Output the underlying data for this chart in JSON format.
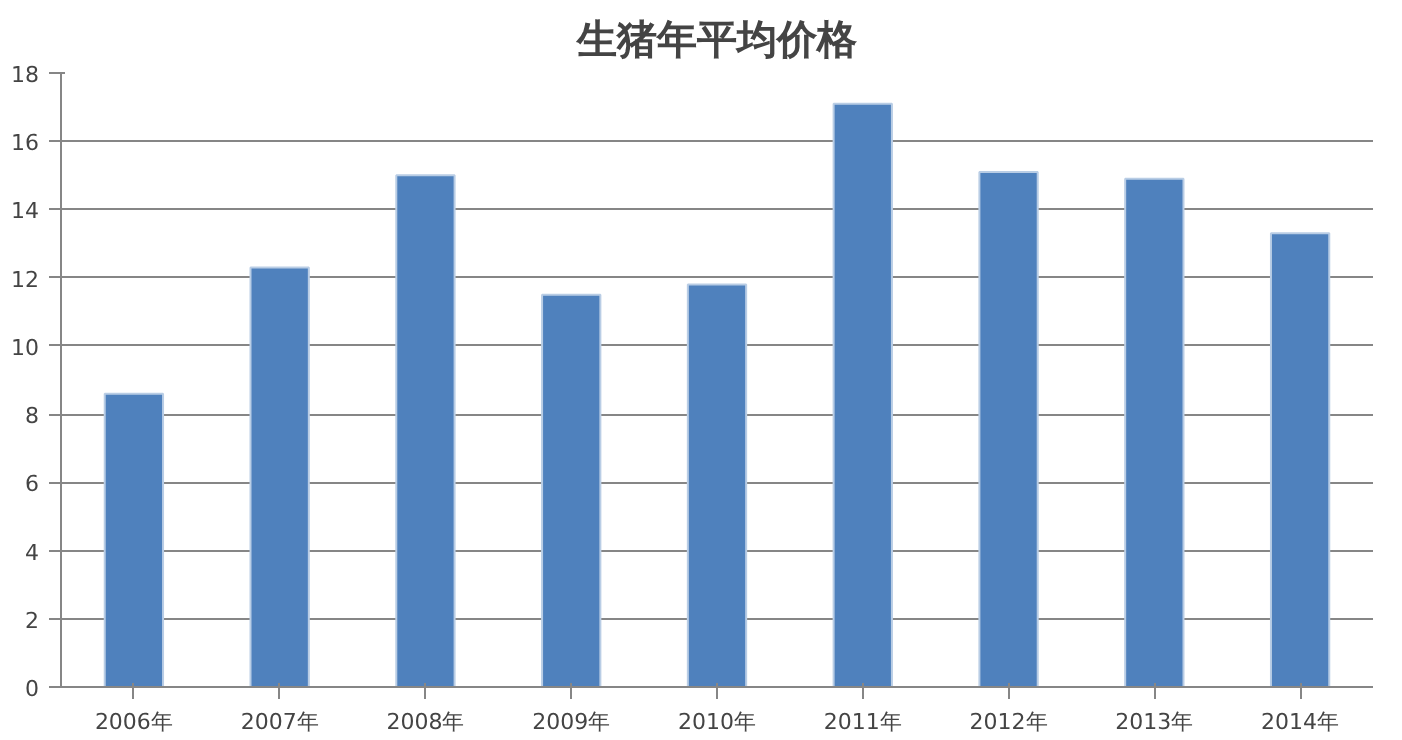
{
  "chart_data": {
    "type": "bar",
    "title": "生猪年平均价格",
    "categories": [
      "2006年",
      "2007年",
      "2008年",
      "2009年",
      "2010年",
      "2011年",
      "2012年",
      "2013年",
      "2014年"
    ],
    "values": [
      8.6,
      12.3,
      15.0,
      11.5,
      11.8,
      17.1,
      15.1,
      14.9,
      13.3
    ],
    "color": "#4f81bd",
    "ylim": [
      0,
      18
    ],
    "yticks": [
      0,
      2,
      4,
      6,
      8,
      10,
      12,
      14,
      16,
      18
    ],
    "grid": "y"
  }
}
